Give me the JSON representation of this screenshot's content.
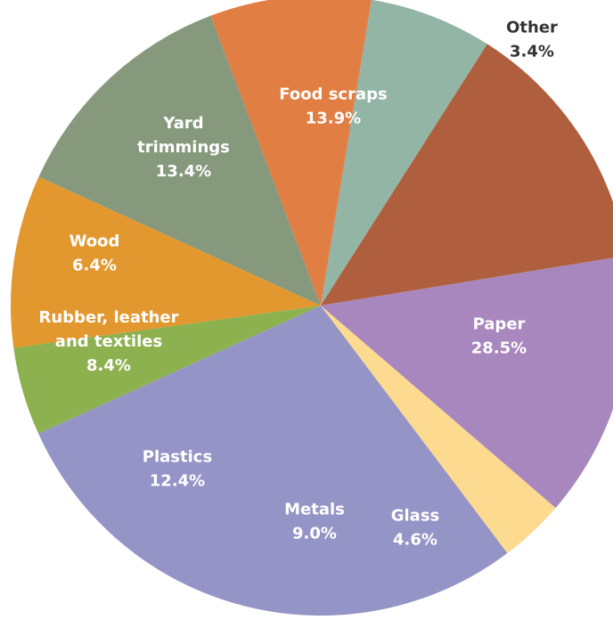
{
  "chart_data": {
    "type": "pie",
    "title": "",
    "slices": [
      {
        "label": [
          "Paper"
        ],
        "value": 28.5,
        "value_text": "28.5%",
        "color": "#9594C7",
        "label_color": "#ffffff"
      },
      {
        "label": [
          "Glass"
        ],
        "value": 4.6,
        "value_text": "4.6%",
        "color": "#8EB150",
        "label_color": "#ffffff"
      },
      {
        "label": [
          "Metals"
        ],
        "value": 9.0,
        "value_text": "9.0%",
        "color": "#E2982E",
        "label_color": "#ffffff"
      },
      {
        "label": [
          "Plastics"
        ],
        "value": 12.4,
        "value_text": "12.4%",
        "color": "#86997C",
        "label_color": "#ffffff"
      },
      {
        "label": [
          "Rubber, leather",
          "and textiles"
        ],
        "value": 8.4,
        "value_text": "8.4%",
        "color": "#E17E43",
        "label_color": "#ffffff"
      },
      {
        "label": [
          "Wood"
        ],
        "value": 6.4,
        "value_text": "6.4%",
        "color": "#92B5A6",
        "label_color": "#ffffff"
      },
      {
        "label": [
          "Yard",
          "trimmings"
        ],
        "value": 13.4,
        "value_text": "13.4%",
        "color": "#AF5F3D",
        "label_color": "#ffffff"
      },
      {
        "label": [
          "Food scraps"
        ],
        "value": 13.9,
        "value_text": "13.9%",
        "color": "#A886BE",
        "label_color": "#ffffff"
      },
      {
        "label": [
          "Other"
        ],
        "value": 3.4,
        "value_text": "3.4%",
        "color": "#FCDA8F",
        "label_color": "#333333"
      }
    ]
  }
}
